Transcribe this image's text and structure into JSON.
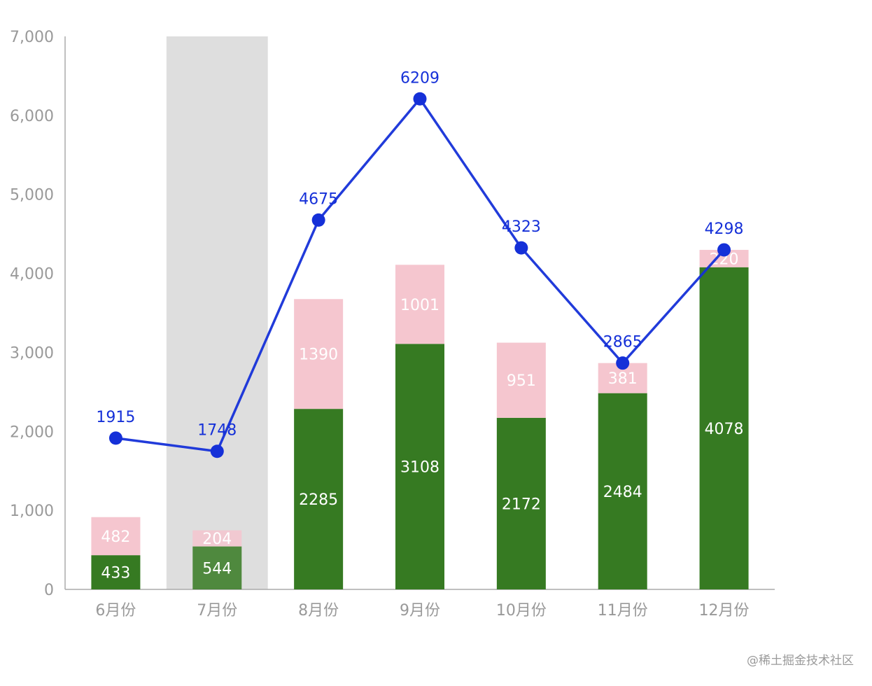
{
  "chart_data": {
    "type": "bar",
    "categories": [
      "6月份",
      "7月份",
      "8月份",
      "9月份",
      "10月份",
      "11月份",
      "12月份"
    ],
    "series": [
      {
        "kind": "bar",
        "stack": "total",
        "values": [
          433,
          544,
          2285,
          3108,
          2172,
          2484,
          4078
        ],
        "color": "#367a22"
      },
      {
        "kind": "bar",
        "stack": "total",
        "values": [
          482,
          204,
          1390,
          1001,
          951,
          381,
          220
        ],
        "color": "#f5c6cf"
      },
      {
        "kind": "line",
        "values": [
          1915,
          1748,
          4675,
          6209,
          4323,
          2865,
          4298
        ],
        "color": "#1530d8"
      }
    ],
    "highlighted_category": "7月份",
    "highlight_color": "#dedede",
    "y_ticks": [
      "0",
      "1,000",
      "2,000",
      "3,000",
      "4,000",
      "5,000",
      "6,000",
      "7,000"
    ],
    "ylim": [
      0,
      7000
    ],
    "title": "",
    "xlabel": "",
    "ylabel": "",
    "grid": false,
    "legend": "none"
  },
  "watermark": "@稀土掘金技术社区"
}
